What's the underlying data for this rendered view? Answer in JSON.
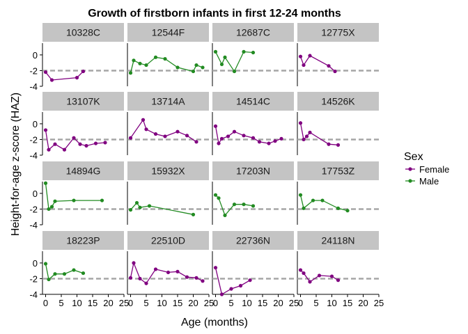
{
  "chart_data": {
    "type": "line",
    "title": "Growth of firstborn infants in first 12-24 months",
    "xlabel": "Age (months)",
    "ylabel": "Height-for-age z-score (HAZ)",
    "xlim": [
      -1,
      25
    ],
    "ylim": [
      -4,
      1.5
    ],
    "xticks": [
      0,
      5,
      10,
      15,
      20,
      25
    ],
    "yticks": [
      0,
      -2,
      -4
    ],
    "reference_line": -2,
    "grid": false,
    "legend": {
      "title": "Sex",
      "position": "right",
      "entries": [
        {
          "name": "Female",
          "color": "#800080"
        },
        {
          "name": "Male",
          "color": "#228B22"
        }
      ]
    },
    "panels": [
      {
        "id": "10328C",
        "sex": "Female",
        "x": [
          0,
          2,
          10,
          12
        ],
        "y": [
          -2.2,
          -3.2,
          -2.9,
          -2.1
        ]
      },
      {
        "id": "12544F",
        "sex": "Male",
        "x": [
          0,
          1,
          3,
          5,
          8,
          11,
          15,
          20,
          21,
          23
        ],
        "y": [
          -2.3,
          -0.7,
          -1.1,
          -1.3,
          -0.3,
          -0.5,
          -1.6,
          -2.1,
          -1.3,
          -1.6
        ]
      },
      {
        "id": "12687C",
        "sex": "Male",
        "x": [
          0,
          2,
          3,
          6,
          9,
          12
        ],
        "y": [
          0.4,
          -1.2,
          -0.3,
          -2.1,
          0.4,
          0.3
        ]
      },
      {
        "id": "12775X",
        "sex": "Female",
        "x": [
          0,
          1,
          3,
          9,
          11
        ],
        "y": [
          -0.2,
          -1.3,
          -0.1,
          -1.4,
          -2.1
        ]
      },
      {
        "id": "13107K",
        "sex": "Female",
        "x": [
          0,
          1,
          3,
          6,
          9,
          11,
          13,
          16,
          19
        ],
        "y": [
          -0.8,
          -3.3,
          -2.6,
          -3.3,
          -1.8,
          -2.6,
          -2.8,
          -2.5,
          -2.4
        ]
      },
      {
        "id": "13714A",
        "sex": "Female",
        "x": [
          0,
          4,
          5,
          8,
          11,
          15,
          18,
          21
        ],
        "y": [
          -1.8,
          0.5,
          -0.7,
          -1.3,
          -1.6,
          -1.0,
          -1.5,
          -2.3
        ]
      },
      {
        "id": "14514C",
        "sex": "Female",
        "x": [
          0,
          1,
          2,
          4,
          6,
          9,
          12,
          14,
          17,
          19,
          21
        ],
        "y": [
          -0.3,
          -2.5,
          -1.9,
          -1.6,
          -1.0,
          -1.5,
          -1.8,
          -2.3,
          -2.5,
          -2.2,
          -1.9
        ]
      },
      {
        "id": "14526K",
        "sex": "Female",
        "x": [
          0,
          1,
          2,
          3,
          9,
          12
        ],
        "y": [
          0.1,
          -2.0,
          -1.6,
          -1.1,
          -2.6,
          -2.7
        ]
      },
      {
        "id": "14894G",
        "sex": "Male",
        "x": [
          0,
          1,
          2,
          3,
          9,
          18
        ],
        "y": [
          1.3,
          -2.0,
          -1.7,
          -1.0,
          -0.9,
          -0.9
        ]
      },
      {
        "id": "15932X",
        "sex": "Male",
        "x": [
          0,
          2,
          3,
          6,
          20
        ],
        "y": [
          -2.1,
          -1.2,
          -1.8,
          -1.6,
          -2.7
        ]
      },
      {
        "id": "17203N",
        "sex": "Male",
        "x": [
          0,
          1,
          3,
          6,
          9,
          12
        ],
        "y": [
          -0.2,
          -0.6,
          -2.8,
          -1.4,
          -1.4,
          -1.6
        ]
      },
      {
        "id": "17753Z",
        "sex": "Male",
        "x": [
          0,
          1,
          4,
          7,
          12,
          15
        ],
        "y": [
          -0.2,
          -1.9,
          -0.9,
          -0.9,
          -1.9,
          -2.2
        ]
      },
      {
        "id": "18223P",
        "sex": "Male",
        "x": [
          0,
          1,
          3,
          6,
          9,
          12
        ],
        "y": [
          -0.1,
          -2.1,
          -1.4,
          -1.4,
          -0.9,
          -1.3
        ]
      },
      {
        "id": "22510D",
        "sex": "Female",
        "x": [
          0,
          1,
          3,
          5,
          8,
          12,
          15,
          18,
          21,
          23
        ],
        "y": [
          -1.9,
          0.0,
          -2.0,
          -2.6,
          -0.8,
          -1.2,
          -1.1,
          -1.8,
          -1.9,
          -2.3
        ]
      },
      {
        "id": "22736N",
        "sex": "Female",
        "x": [
          0,
          2,
          5,
          8,
          11
        ],
        "y": [
          -0.6,
          -4.0,
          -3.3,
          -2.9,
          -2.2
        ]
      },
      {
        "id": "24118N",
        "sex": "Female",
        "x": [
          0,
          1,
          3,
          6,
          10,
          12
        ],
        "y": [
          -0.9,
          -1.3,
          -2.4,
          -1.6,
          -1.7,
          -2.2
        ]
      }
    ]
  }
}
